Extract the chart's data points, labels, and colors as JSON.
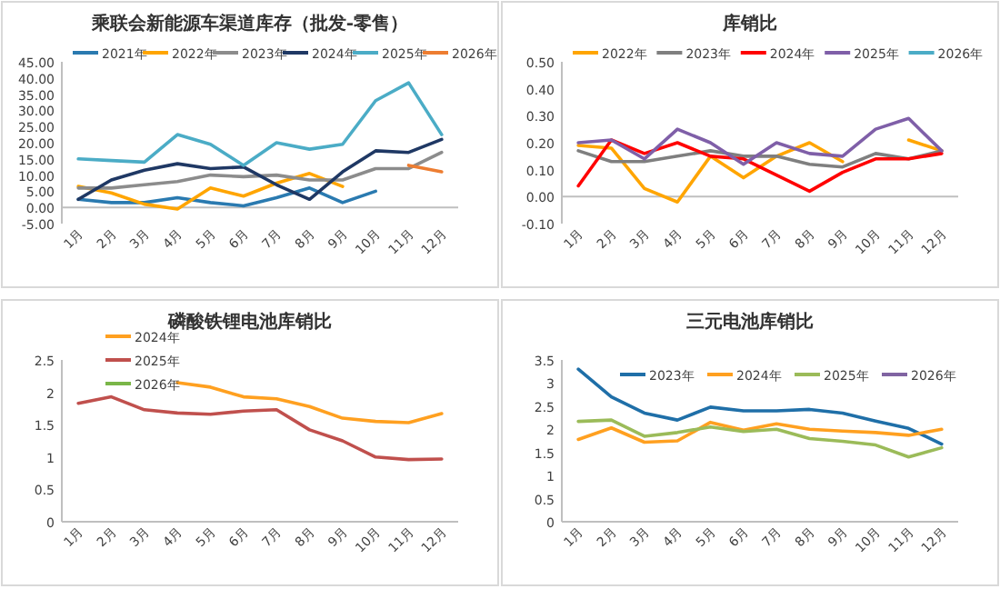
{
  "chart_data": [
    {
      "type": "line",
      "title": "乘联会新能源车渠道库存（批发-零售）",
      "categories": [
        "1月",
        "2月",
        "3月",
        "4月",
        "5月",
        "6月",
        "7月",
        "8月",
        "9月",
        "10月",
        "11月",
        "12月"
      ],
      "ylim": [
        -5,
        45
      ],
      "yticks": [
        {
          "value": -5,
          "label": "-5.00"
        },
        {
          "value": 0,
          "label": "0.00"
        },
        {
          "value": 5,
          "label": "5.00"
        },
        {
          "value": 10,
          "label": "10.00"
        },
        {
          "value": 15,
          "label": "15.00"
        },
        {
          "value": 20,
          "label": "20.00"
        },
        {
          "value": 25,
          "label": "25.00"
        },
        {
          "value": 30,
          "label": "30.00"
        },
        {
          "value": 35,
          "label": "35.00"
        },
        {
          "value": 40,
          "label": "40.00"
        },
        {
          "value": 45,
          "label": "45.00"
        }
      ],
      "legend": "top",
      "series": [
        {
          "name": "2021年",
          "color": "#2a7ab0",
          "values": [
            2.5,
            1.5,
            1.5,
            3,
            1.5,
            0.5,
            3,
            6,
            1.5,
            5,
            null,
            null
          ]
        },
        {
          "name": "2022年",
          "color": "#ffa500",
          "values": [
            6.5,
            4.5,
            1,
            -0.5,
            6,
            3.5,
            7.5,
            10.5,
            6.5,
            null,
            null,
            null
          ]
        },
        {
          "name": "2023年",
          "color": "#8c8c8c",
          "values": [
            6,
            6,
            7,
            8,
            10,
            9.5,
            10,
            8.5,
            8.5,
            12,
            12,
            17
          ]
        },
        {
          "name": "2024年",
          "color": "#1f3864",
          "values": [
            2.5,
            8.5,
            11.5,
            13.5,
            12,
            12.5,
            7,
            2.5,
            11,
            17.5,
            17,
            21
          ]
        },
        {
          "name": "2025年",
          "color": "#4bacc6",
          "values": [
            15,
            14.5,
            14,
            22.5,
            19.5,
            13,
            20,
            18,
            19.5,
            33,
            38.5,
            22.5
          ]
        },
        {
          "name": "2026年",
          "color": "#ed7d31",
          "values": [
            null,
            null,
            null,
            null,
            null,
            null,
            null,
            null,
            null,
            null,
            13,
            11
          ]
        }
      ]
    },
    {
      "type": "line",
      "title": "库销比",
      "categories": [
        "1月",
        "2月",
        "3月",
        "4月",
        "5月",
        "6月",
        "7月",
        "8月",
        "9月",
        "10月",
        "11月",
        "12月"
      ],
      "ylim": [
        -0.1,
        0.5
      ],
      "yticks": [
        {
          "value": -0.1,
          "label": "-0.10"
        },
        {
          "value": 0,
          "label": "0.00"
        },
        {
          "value": 0.1,
          "label": "0.10"
        },
        {
          "value": 0.2,
          "label": "0.20"
        },
        {
          "value": 0.3,
          "label": "0.30"
        },
        {
          "value": 0.4,
          "label": "0.40"
        },
        {
          "value": 0.5,
          "label": "0.50"
        }
      ],
      "legend": "top",
      "series": [
        {
          "name": "2022年",
          "color": "#ffa500",
          "values": [
            0.19,
            0.18,
            0.03,
            -0.02,
            0.15,
            0.07,
            0.15,
            0.2,
            0.13,
            null,
            0.21,
            0.17
          ]
        },
        {
          "name": "2023年",
          "color": "#7f7f7f",
          "values": [
            0.17,
            0.13,
            0.13,
            0.15,
            0.17,
            0.15,
            0.15,
            0.12,
            0.11,
            0.16,
            0.14,
            0.17
          ]
        },
        {
          "name": "2024年",
          "color": "#ff0000",
          "values": [
            0.04,
            0.21,
            0.16,
            0.2,
            0.15,
            0.14,
            0.08,
            0.02,
            0.09,
            0.14,
            0.14,
            0.16
          ]
        },
        {
          "name": "2025年",
          "color": "#7f5fa8",
          "values": [
            0.2,
            0.21,
            0.14,
            0.25,
            0.2,
            0.12,
            0.2,
            0.16,
            0.15,
            0.25,
            0.29,
            0.17
          ]
        },
        {
          "name": "2026年",
          "color": "#4bacc6",
          "values": [
            null,
            null,
            null,
            null,
            null,
            null,
            null,
            null,
            null,
            null,
            null,
            null
          ]
        }
      ]
    },
    {
      "type": "line",
      "title": "磷酸铁锂电池库销比",
      "categories": [
        "1月",
        "2月",
        "3月",
        "4月",
        "5月",
        "6月",
        "7月",
        "8月",
        "9月",
        "10月",
        "11月",
        "12月"
      ],
      "ylim": [
        0,
        2.5
      ],
      "yticks": [
        0,
        0.5,
        1,
        1.5,
        2,
        2.5
      ],
      "legend": "top left",
      "series": [
        {
          "name": "2024年",
          "color": "#ffa020",
          "values": [
            null,
            null,
            null,
            2.15,
            2.08,
            1.93,
            1.9,
            1.78,
            1.6,
            1.55,
            1.53,
            1.67
          ]
        },
        {
          "name": "2025年",
          "color": "#c0504d",
          "values": [
            1.83,
            1.93,
            1.73,
            1.68,
            1.66,
            1.71,
            1.73,
            1.42,
            1.25,
            1.0,
            0.96,
            0.97
          ]
        },
        {
          "name": "2026年",
          "color": "#7ab648",
          "values": [
            null,
            null,
            null,
            null,
            null,
            null,
            null,
            null,
            null,
            null,
            null,
            null
          ]
        }
      ]
    },
    {
      "type": "line",
      "title": "三元电池库销比",
      "categories": [
        "1月",
        "2月",
        "3月",
        "4月",
        "5月",
        "6月",
        "7月",
        "8月",
        "9月",
        "10月",
        "11月",
        "12月"
      ],
      "ylim": [
        0,
        3.5
      ],
      "yticks": [
        0,
        0.5,
        1,
        1.5,
        2,
        2.5,
        3,
        3.5
      ],
      "legend": "top right",
      "series": [
        {
          "name": "2023年",
          "color": "#1f6fa8",
          "values": [
            3.3,
            2.7,
            2.35,
            2.2,
            2.48,
            2.4,
            2.4,
            2.43,
            2.35,
            2.18,
            2.02,
            1.68
          ]
        },
        {
          "name": "2024年",
          "color": "#ffa020",
          "values": [
            1.78,
            2.03,
            1.72,
            1.75,
            2.15,
            1.98,
            2.12,
            2.0,
            1.96,
            1.93,
            1.87,
            2.0
          ]
        },
        {
          "name": "2025年",
          "color": "#9bbb59",
          "values": [
            2.17,
            2.2,
            1.85,
            1.93,
            2.05,
            1.95,
            2.0,
            1.8,
            1.74,
            1.66,
            1.4,
            1.6
          ]
        },
        {
          "name": "2026年",
          "color": "#8064a2",
          "values": [
            null,
            null,
            null,
            null,
            null,
            null,
            null,
            null,
            null,
            null,
            null,
            null
          ]
        }
      ]
    }
  ]
}
